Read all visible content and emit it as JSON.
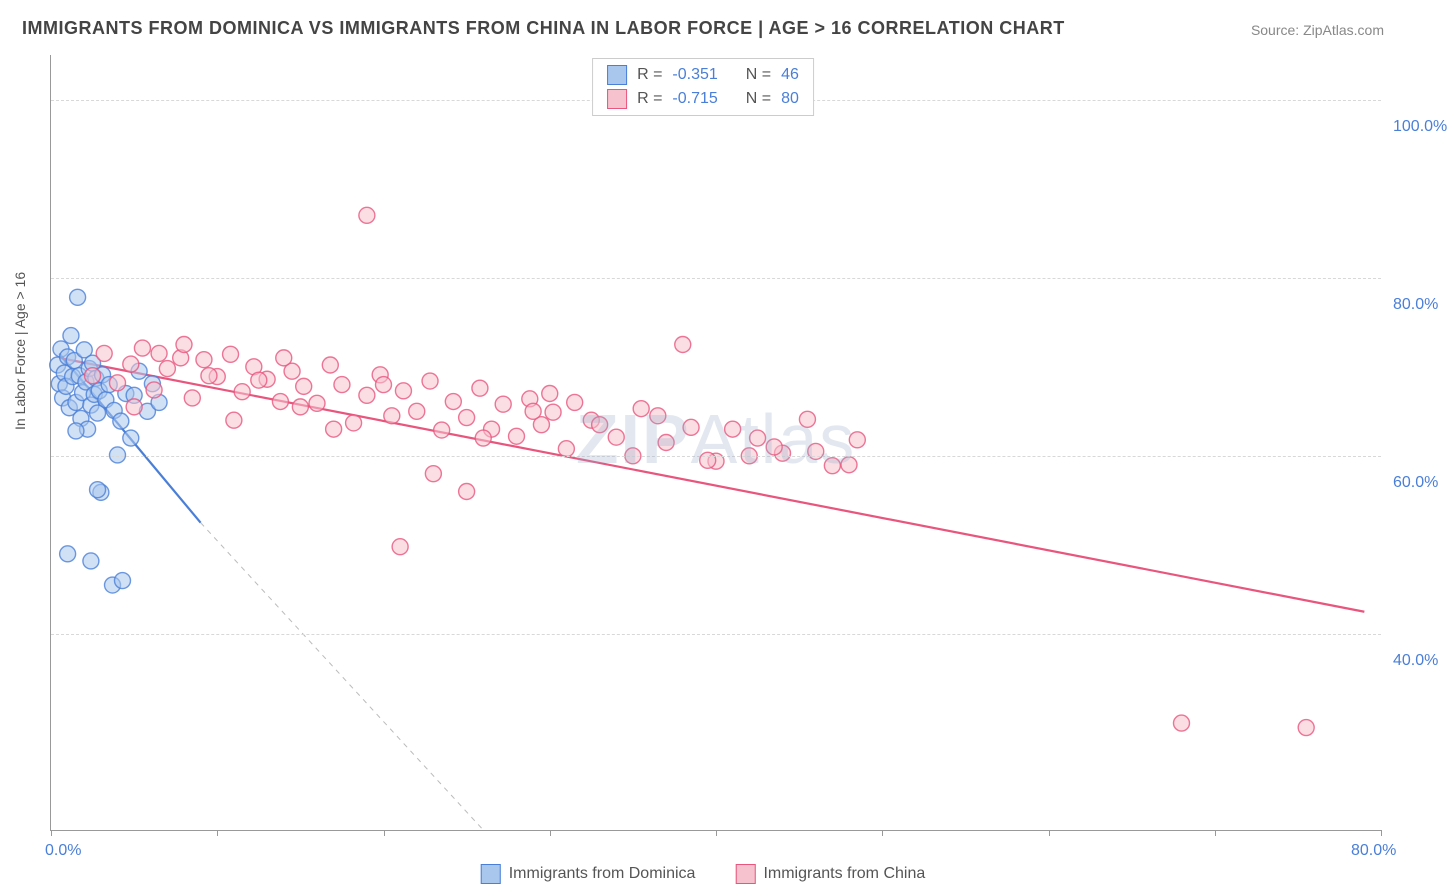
{
  "title": "IMMIGRANTS FROM DOMINICA VS IMMIGRANTS FROM CHINA IN LABOR FORCE | AGE > 16 CORRELATION CHART",
  "source": "Source: ZipAtlas.com",
  "watermark_prefix": "ZIP",
  "watermark_suffix": "Atlas",
  "ylabel": "In Labor Force | Age > 16",
  "chart": {
    "type": "scatter",
    "background_color": "#ffffff",
    "grid_color": "#d8d8d8",
    "axis_label_color": "#4a7fd8",
    "text_color": "#555555",
    "xlim": [
      0,
      80
    ],
    "ylim": [
      18,
      105
    ],
    "x_ticks": [
      0,
      10,
      20,
      30,
      40,
      50,
      60,
      70,
      80
    ],
    "x_tick_labels": [
      "0.0%",
      "",
      "",
      "",
      "",
      "",
      "",
      "",
      "80.0%"
    ],
    "y_gridlines": [
      40,
      60,
      80,
      100
    ],
    "y_tick_labels": [
      "40.0%",
      "60.0%",
      "80.0%",
      "100.0%"
    ],
    "marker_radius": 8,
    "marker_opacity": 0.55,
    "marker_stroke_width": 1.4,
    "trendline_width": 2.2,
    "series": [
      {
        "name": "Immigrants from Dominica",
        "fill_color": "#a9c6ed",
        "stroke_color": "#4a7fd8",
        "R": "-0.351",
        "N": "46",
        "trend": {
          "x1": 0.5,
          "y1": 71.5,
          "x2": 9.0,
          "y2": 52.5,
          "dash_extend_x": 26,
          "dash_extend_y": 18
        },
        "points": [
          [
            0.4,
            70.2
          ],
          [
            0.5,
            68.1
          ],
          [
            0.6,
            72.0
          ],
          [
            0.7,
            66.5
          ],
          [
            0.8,
            69.3
          ],
          [
            0.9,
            67.8
          ],
          [
            1.0,
            71.1
          ],
          [
            1.1,
            65.4
          ],
          [
            1.2,
            73.5
          ],
          [
            1.3,
            68.9
          ],
          [
            1.4,
            70.7
          ],
          [
            1.5,
            66.0
          ],
          [
            1.6,
            77.8
          ],
          [
            1.7,
            69.0
          ],
          [
            1.8,
            64.2
          ],
          [
            1.9,
            67.1
          ],
          [
            2.0,
            71.9
          ],
          [
            2.1,
            68.3
          ],
          [
            2.2,
            63.0
          ],
          [
            2.3,
            69.8
          ],
          [
            2.4,
            65.7
          ],
          [
            2.5,
            70.4
          ],
          [
            2.6,
            66.9
          ],
          [
            2.7,
            68.7
          ],
          [
            2.8,
            64.8
          ],
          [
            2.9,
            67.3
          ],
          [
            3.0,
            55.9
          ],
          [
            3.1,
            69.1
          ],
          [
            3.3,
            66.3
          ],
          [
            3.5,
            68.0
          ],
          [
            3.8,
            65.1
          ],
          [
            4.0,
            60.1
          ],
          [
            4.2,
            63.9
          ],
          [
            4.5,
            67.0
          ],
          [
            4.8,
            62.0
          ],
          [
            5.0,
            66.8
          ],
          [
            5.3,
            69.5
          ],
          [
            5.8,
            65.0
          ],
          [
            6.1,
            68.1
          ],
          [
            1.0,
            49.0
          ],
          [
            2.4,
            48.2
          ],
          [
            3.7,
            45.5
          ],
          [
            4.3,
            46.0
          ],
          [
            2.8,
            56.2
          ],
          [
            1.5,
            62.8
          ],
          [
            6.5,
            66.0
          ]
        ]
      },
      {
        "name": "Immigrants from China",
        "fill_color": "#f5c2ce",
        "stroke_color": "#e8557d",
        "R": "-0.715",
        "N": "80",
        "trend": {
          "x1": 0.5,
          "y1": 71.0,
          "x2": 79.0,
          "y2": 42.5
        },
        "points": [
          [
            2.5,
            69.0
          ],
          [
            3.2,
            71.5
          ],
          [
            4.0,
            68.2
          ],
          [
            4.8,
            70.3
          ],
          [
            5.5,
            72.1
          ],
          [
            6.2,
            67.4
          ],
          [
            7.0,
            69.8
          ],
          [
            7.8,
            71.0
          ],
          [
            8.5,
            66.5
          ],
          [
            9.2,
            70.8
          ],
          [
            10.0,
            68.9
          ],
          [
            10.8,
            71.4
          ],
          [
            11.5,
            67.2
          ],
          [
            12.2,
            70.0
          ],
          [
            13.0,
            68.6
          ],
          [
            13.8,
            66.1
          ],
          [
            14.5,
            69.5
          ],
          [
            15.2,
            67.8
          ],
          [
            16.0,
            65.9
          ],
          [
            16.8,
            70.2
          ],
          [
            17.5,
            68.0
          ],
          [
            18.2,
            63.7
          ],
          [
            19.0,
            66.8
          ],
          [
            19.8,
            69.1
          ],
          [
            20.5,
            64.5
          ],
          [
            21.2,
            67.3
          ],
          [
            22.0,
            65.0
          ],
          [
            22.8,
            68.4
          ],
          [
            23.5,
            62.9
          ],
          [
            24.2,
            66.1
          ],
          [
            25.0,
            64.3
          ],
          [
            25.8,
            67.6
          ],
          [
            26.5,
            63.0
          ],
          [
            27.2,
            65.8
          ],
          [
            28.0,
            62.2
          ],
          [
            28.8,
            66.4
          ],
          [
            29.5,
            63.5
          ],
          [
            30.2,
            64.9
          ],
          [
            31.0,
            60.8
          ],
          [
            32.5,
            64.0
          ],
          [
            34.0,
            62.1
          ],
          [
            35.5,
            65.3
          ],
          [
            37.0,
            61.5
          ],
          [
            38.5,
            63.2
          ],
          [
            40.0,
            59.4
          ],
          [
            42.5,
            62.0
          ],
          [
            44.0,
            60.3
          ],
          [
            45.5,
            64.1
          ],
          [
            47.0,
            58.9
          ],
          [
            48.5,
            61.8
          ],
          [
            19.0,
            87.0
          ],
          [
            21.0,
            49.8
          ],
          [
            23.0,
            58.0
          ],
          [
            25.0,
            56.0
          ],
          [
            38.0,
            72.5
          ],
          [
            42.0,
            60.0
          ],
          [
            48.0,
            59.0
          ],
          [
            5.0,
            65.5
          ],
          [
            8.0,
            72.5
          ],
          [
            11.0,
            64.0
          ],
          [
            14.0,
            71.0
          ],
          [
            17.0,
            63.0
          ],
          [
            20.0,
            68.0
          ],
          [
            26.0,
            62.0
          ],
          [
            29.0,
            65.0
          ],
          [
            31.5,
            66.0
          ],
          [
            33.0,
            63.5
          ],
          [
            35.0,
            60.0
          ],
          [
            36.5,
            64.5
          ],
          [
            39.5,
            59.5
          ],
          [
            41.0,
            63.0
          ],
          [
            43.5,
            61.0
          ],
          [
            46.0,
            60.5
          ],
          [
            30.0,
            67.0
          ],
          [
            68.0,
            30.0
          ],
          [
            75.5,
            29.5
          ],
          [
            15.0,
            65.5
          ],
          [
            12.5,
            68.5
          ],
          [
            9.5,
            69.0
          ],
          [
            6.5,
            71.5
          ]
        ]
      }
    ]
  },
  "legend_bottom": [
    {
      "label": "Immigrants from Dominica",
      "swatch": "blue"
    },
    {
      "label": "Immigrants from China",
      "swatch": "pink"
    }
  ]
}
